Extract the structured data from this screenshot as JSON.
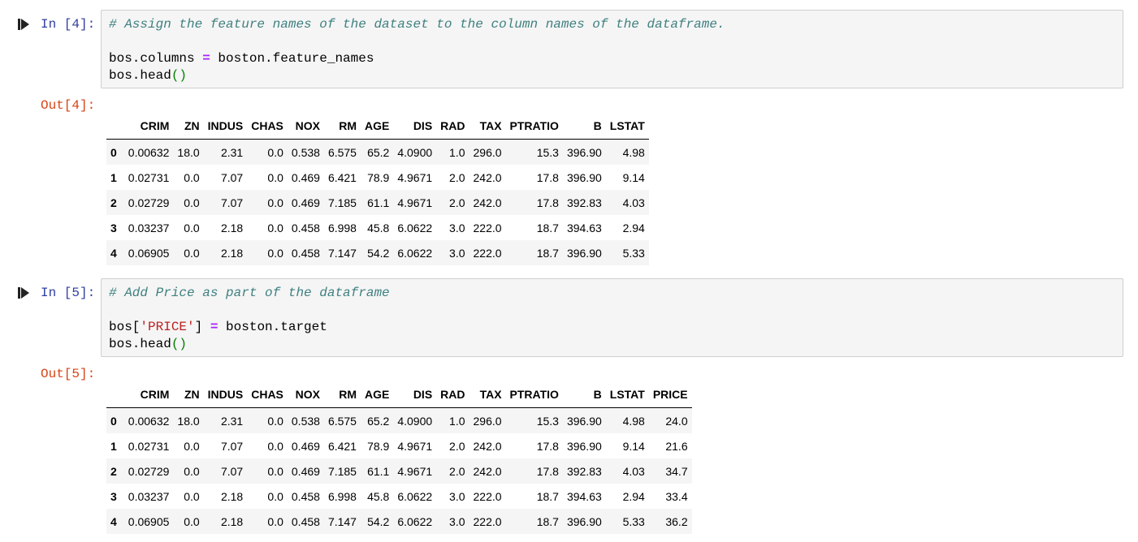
{
  "cell1": {
    "in_prompt": "In [4]:",
    "out_prompt": "Out[4]:",
    "code": {
      "comment": "# Assign the feature names of the dataset to the column names of the dataframe.",
      "l2_left": "bos.columns ",
      "l2_op": "=",
      "l2_right": " boston.feature_names",
      "l3_text": "bos.head",
      "l3_paren": "()"
    },
    "table": {
      "columns": [
        "",
        "CRIM",
        "ZN",
        "INDUS",
        "CHAS",
        "NOX",
        "RM",
        "AGE",
        "DIS",
        "RAD",
        "TAX",
        "PTRATIO",
        "B",
        "LSTAT"
      ],
      "rows": [
        [
          "0",
          "0.00632",
          "18.0",
          "2.31",
          "0.0",
          "0.538",
          "6.575",
          "65.2",
          "4.0900",
          "1.0",
          "296.0",
          "15.3",
          "396.90",
          "4.98"
        ],
        [
          "1",
          "0.02731",
          "0.0",
          "7.07",
          "0.0",
          "0.469",
          "6.421",
          "78.9",
          "4.9671",
          "2.0",
          "242.0",
          "17.8",
          "396.90",
          "9.14"
        ],
        [
          "2",
          "0.02729",
          "0.0",
          "7.07",
          "0.0",
          "0.469",
          "7.185",
          "61.1",
          "4.9671",
          "2.0",
          "242.0",
          "17.8",
          "392.83",
          "4.03"
        ],
        [
          "3",
          "0.03237",
          "0.0",
          "2.18",
          "0.0",
          "0.458",
          "6.998",
          "45.8",
          "6.0622",
          "3.0",
          "222.0",
          "18.7",
          "394.63",
          "2.94"
        ],
        [
          "4",
          "0.06905",
          "0.0",
          "2.18",
          "0.0",
          "0.458",
          "7.147",
          "54.2",
          "6.0622",
          "3.0",
          "222.0",
          "18.7",
          "396.90",
          "5.33"
        ]
      ]
    }
  },
  "cell2": {
    "in_prompt": "In [5]:",
    "out_prompt": "Out[5]:",
    "code": {
      "comment": "# Add Price as part of the dataframe",
      "l2_a": "bos[",
      "l2_str": "'PRICE'",
      "l2_b": "] ",
      "l2_op": "=",
      "l2_c": " boston.target",
      "l3_text": "bos.head",
      "l3_paren": "()"
    },
    "table": {
      "columns": [
        "",
        "CRIM",
        "ZN",
        "INDUS",
        "CHAS",
        "NOX",
        "RM",
        "AGE",
        "DIS",
        "RAD",
        "TAX",
        "PTRATIO",
        "B",
        "LSTAT",
        "PRICE"
      ],
      "rows": [
        [
          "0",
          "0.00632",
          "18.0",
          "2.31",
          "0.0",
          "0.538",
          "6.575",
          "65.2",
          "4.0900",
          "1.0",
          "296.0",
          "15.3",
          "396.90",
          "4.98",
          "24.0"
        ],
        [
          "1",
          "0.02731",
          "0.0",
          "7.07",
          "0.0",
          "0.469",
          "6.421",
          "78.9",
          "4.9671",
          "2.0",
          "242.0",
          "17.8",
          "396.90",
          "9.14",
          "21.6"
        ],
        [
          "2",
          "0.02729",
          "0.0",
          "7.07",
          "0.0",
          "0.469",
          "7.185",
          "61.1",
          "4.9671",
          "2.0",
          "242.0",
          "17.8",
          "392.83",
          "4.03",
          "34.7"
        ],
        [
          "3",
          "0.03237",
          "0.0",
          "2.18",
          "0.0",
          "0.458",
          "6.998",
          "45.8",
          "6.0622",
          "3.0",
          "222.0",
          "18.7",
          "394.63",
          "2.94",
          "33.4"
        ],
        [
          "4",
          "0.06905",
          "0.0",
          "2.18",
          "0.0",
          "0.458",
          "7.147",
          "54.2",
          "6.0622",
          "3.0",
          "222.0",
          "18.7",
          "396.90",
          "5.33",
          "36.2"
        ]
      ]
    }
  },
  "icons": {
    "run": "run-cell-icon"
  },
  "colors": {
    "in_prompt": "#303f9f",
    "out_prompt": "#d84315",
    "comment": "#408080",
    "operator": "#aa22ff",
    "paren": "#008000",
    "string": "#ba2121"
  }
}
